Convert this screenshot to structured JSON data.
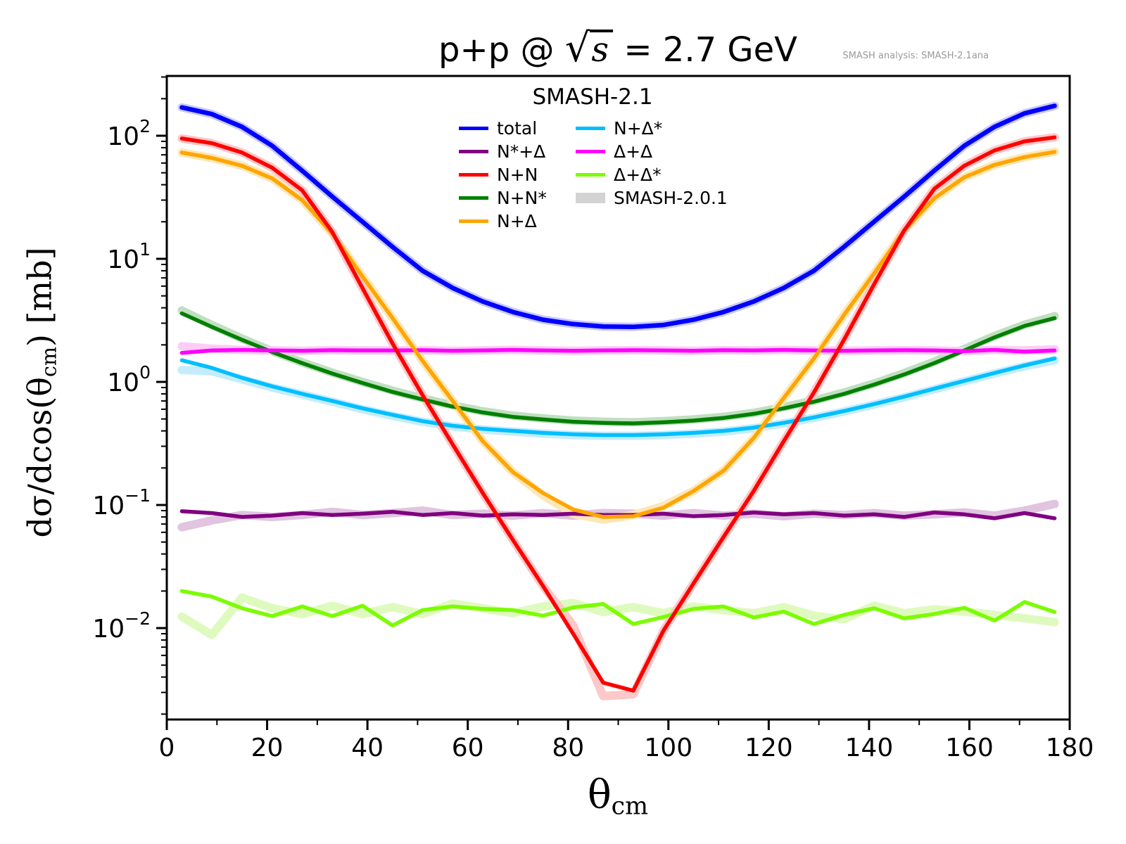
{
  "title": {
    "p1": "p+p @ ",
    "sqrt": "√",
    "s": "s",
    "p2": " = 2.7 GeV"
  },
  "watermark": "SMASH analysis: SMASH-2.1ana",
  "axes": {
    "ylabel_prefix": "dσ/dcos(θ",
    "ylabel_sub": "cm",
    "ylabel_suffix": ") [mb]",
    "xlabel_main": "θ",
    "xlabel_sub": "cm"
  },
  "legend": {
    "title": "SMASH-2.1",
    "columns": [
      [
        {
          "label": "total",
          "color": "#0000ff",
          "type": "line"
        },
        {
          "label": "N*+Δ",
          "color": "#800080",
          "type": "line"
        },
        {
          "label": "N+N",
          "color": "#ff0000",
          "type": "line"
        },
        {
          "label": "N+N*",
          "color": "#008000",
          "type": "line"
        },
        {
          "label": "N+Δ",
          "color": "#ffa500",
          "type": "line"
        }
      ],
      [
        {
          "label": "N+Δ*",
          "color": "#00bfff",
          "type": "line"
        },
        {
          "label": "Δ+Δ",
          "color": "#ff00ff",
          "type": "line"
        },
        {
          "label": "Δ+Δ*",
          "color": "#7cfc00",
          "type": "line"
        },
        {
          "label": "SMASH-2.0.1",
          "color": "#d3d3d3",
          "type": "patch"
        }
      ]
    ]
  },
  "chart_data": {
    "type": "line",
    "title": "p+p @ sqrt(s) = 2.7 GeV",
    "xlabel": "theta_cm",
    "ylabel": "dsigma/dcos(theta_cm) [mb]",
    "x_scale": "linear",
    "y_scale": "log",
    "xlim": [
      0,
      180
    ],
    "ylim": [
      0.0018,
      306
    ],
    "grid": false,
    "legend_position": "upper center",
    "x_ticks": [
      0,
      20,
      40,
      60,
      80,
      100,
      120,
      140,
      160,
      180
    ],
    "y_tick_exponents": [
      2,
      1,
      0,
      -1,
      -2
    ],
    "x": [
      3,
      9,
      15,
      21,
      27,
      33,
      39,
      45,
      51,
      57,
      63,
      69,
      75,
      81,
      87,
      93,
      99,
      105,
      111,
      117,
      123,
      129,
      135,
      141,
      147,
      153,
      159,
      165,
      171,
      177
    ],
    "line_order": [
      "Δ+Δ*",
      "N*+Δ",
      "N+Δ*",
      "N+N*",
      "Δ+Δ",
      "N+Δ",
      "N+N",
      "total"
    ],
    "ref_label": "SMASH-2.0.1",
    "series": [
      {
        "name": "total",
        "color": "#0000ff",
        "band_color": "#c9c9fb",
        "values": [
          170,
          150,
          118,
          83,
          52,
          32,
          20,
          12.5,
          8.0,
          5.8,
          4.5,
          3.7,
          3.2,
          2.95,
          2.82,
          2.8,
          2.9,
          3.2,
          3.7,
          4.5,
          5.8,
          8.0,
          12.5,
          20,
          32,
          52,
          83,
          118,
          152,
          175
        ]
      },
      {
        "name": "N*+Δ",
        "color": "#800080",
        "band_color": "#e0c4e0",
        "values": [
          0.089,
          0.086,
          0.08,
          0.082,
          0.086,
          0.083,
          0.085,
          0.088,
          0.083,
          0.086,
          0.082,
          0.084,
          0.083,
          0.085,
          0.083,
          0.083,
          0.085,
          0.081,
          0.083,
          0.087,
          0.084,
          0.086,
          0.082,
          0.084,
          0.08,
          0.087,
          0.084,
          0.078,
          0.086,
          0.078
        ],
        "ref_values": [
          0.066,
          0.075,
          0.083,
          0.08,
          0.083,
          0.088,
          0.083,
          0.086,
          0.09,
          0.083,
          0.085,
          0.082,
          0.086,
          0.082,
          0.086,
          0.085,
          0.082,
          0.086,
          0.082,
          0.085,
          0.081,
          0.085,
          0.083,
          0.086,
          0.082,
          0.084,
          0.087,
          0.082,
          0.09,
          0.102
        ]
      },
      {
        "name": "N+N",
        "color": "#ff0000",
        "band_color": "#fcc8c8",
        "values": [
          95,
          87,
          73,
          55,
          36,
          16.5,
          5.8,
          2.05,
          0.78,
          0.31,
          0.125,
          0.052,
          0.022,
          0.009,
          0.0036,
          0.0031,
          0.0095,
          0.023,
          0.055,
          0.13,
          0.33,
          0.82,
          2.2,
          6.2,
          17,
          37,
          57,
          76,
          90,
          97
        ],
        "ref_values": [
          95,
          87,
          73,
          55,
          36,
          16.5,
          5.8,
          2.05,
          0.78,
          0.31,
          0.125,
          0.052,
          0.022,
          0.0105,
          0.0028,
          0.0029,
          0.0095,
          0.023,
          0.055,
          0.13,
          0.33,
          0.82,
          2.2,
          6.2,
          17,
          37,
          57,
          76,
          90,
          97
        ]
      },
      {
        "name": "N+N*",
        "color": "#008000",
        "band_color": "#c0dfc0",
        "values": [
          3.6,
          2.8,
          2.2,
          1.75,
          1.42,
          1.17,
          0.98,
          0.83,
          0.72,
          0.63,
          0.565,
          0.52,
          0.495,
          0.475,
          0.465,
          0.46,
          0.47,
          0.485,
          0.51,
          0.55,
          0.61,
          0.69,
          0.8,
          0.95,
          1.15,
          1.42,
          1.8,
          2.3,
          2.85,
          3.3
        ],
        "ref_values": [
          3.8,
          2.9,
          2.25,
          1.78,
          1.44,
          1.19,
          1.0,
          0.85,
          0.735,
          0.645,
          0.578,
          0.532,
          0.505,
          0.485,
          0.475,
          0.47,
          0.48,
          0.495,
          0.52,
          0.56,
          0.625,
          0.705,
          0.82,
          0.97,
          1.18,
          1.46,
          1.85,
          2.36,
          2.92,
          3.42
        ]
      },
      {
        "name": "N+Δ",
        "color": "#ffa500",
        "band_color": "#fde7b8",
        "values": [
          73,
          66,
          57,
          45,
          30,
          16,
          7.2,
          3.3,
          1.48,
          0.7,
          0.33,
          0.185,
          0.125,
          0.092,
          0.08,
          0.081,
          0.095,
          0.13,
          0.19,
          0.35,
          0.74,
          1.55,
          3.5,
          7.6,
          17,
          31,
          46,
          58,
          67,
          74
        ],
        "ref_values": [
          73,
          66,
          57,
          45,
          30,
          16,
          7.2,
          3.3,
          1.48,
          0.7,
          0.33,
          0.185,
          0.12,
          0.085,
          0.076,
          0.083,
          0.098,
          0.13,
          0.19,
          0.35,
          0.74,
          1.55,
          3.5,
          7.6,
          17,
          31,
          46,
          58,
          67,
          74
        ]
      },
      {
        "name": "N+Δ*",
        "color": "#00bfff",
        "band_color": "#c4ecfd",
        "values": [
          1.5,
          1.3,
          1.08,
          0.92,
          0.8,
          0.7,
          0.61,
          0.54,
          0.48,
          0.44,
          0.415,
          0.4,
          0.385,
          0.375,
          0.37,
          0.37,
          0.375,
          0.385,
          0.4,
          0.425,
          0.465,
          0.515,
          0.58,
          0.66,
          0.76,
          0.88,
          1.02,
          1.18,
          1.36,
          1.55
        ],
        "ref_values": [
          1.25,
          1.22,
          1.05,
          0.9,
          0.79,
          0.69,
          0.6,
          0.53,
          0.475,
          0.435,
          0.41,
          0.395,
          0.38,
          0.37,
          0.365,
          0.365,
          0.37,
          0.38,
          0.395,
          0.42,
          0.46,
          0.51,
          0.575,
          0.655,
          0.75,
          0.87,
          1.01,
          1.17,
          1.34,
          1.5
        ]
      },
      {
        "name": "Δ+Δ",
        "color": "#ff00ff",
        "band_color": "#fccdf6",
        "values": [
          1.72,
          1.8,
          1.82,
          1.8,
          1.79,
          1.81,
          1.8,
          1.8,
          1.81,
          1.79,
          1.8,
          1.82,
          1.8,
          1.79,
          1.8,
          1.81,
          1.8,
          1.79,
          1.81,
          1.8,
          1.82,
          1.8,
          1.79,
          1.8,
          1.81,
          1.8,
          1.78,
          1.82,
          1.76,
          1.8
        ],
        "ref_values": [
          1.95,
          1.86,
          1.82,
          1.8,
          1.79,
          1.81,
          1.8,
          1.8,
          1.81,
          1.79,
          1.8,
          1.82,
          1.8,
          1.79,
          1.8,
          1.81,
          1.8,
          1.79,
          1.81,
          1.8,
          1.82,
          1.8,
          1.79,
          1.8,
          1.81,
          1.8,
          1.78,
          1.82,
          1.8,
          1.84
        ]
      },
      {
        "name": "Δ+Δ*",
        "color": "#7cfc00",
        "band_color": "#dffabe",
        "values": [
          0.02,
          0.018,
          0.0145,
          0.0125,
          0.015,
          0.0125,
          0.0152,
          0.0105,
          0.014,
          0.015,
          0.0143,
          0.014,
          0.0126,
          0.0147,
          0.0157,
          0.0108,
          0.0123,
          0.0143,
          0.015,
          0.0122,
          0.0136,
          0.0108,
          0.0128,
          0.0145,
          0.012,
          0.013,
          0.0146,
          0.0115,
          0.0163,
          0.0135
        ],
        "ref_values": [
          0.0124,
          0.0088,
          0.0177,
          0.0145,
          0.013,
          0.0152,
          0.013,
          0.0148,
          0.013,
          0.0158,
          0.0145,
          0.0132,
          0.015,
          0.016,
          0.0135,
          0.0148,
          0.0132,
          0.015,
          0.014,
          0.0132,
          0.0148,
          0.0126,
          0.0118,
          0.0152,
          0.0132,
          0.0142,
          0.0136,
          0.0128,
          0.012,
          0.0112
        ]
      }
    ]
  }
}
